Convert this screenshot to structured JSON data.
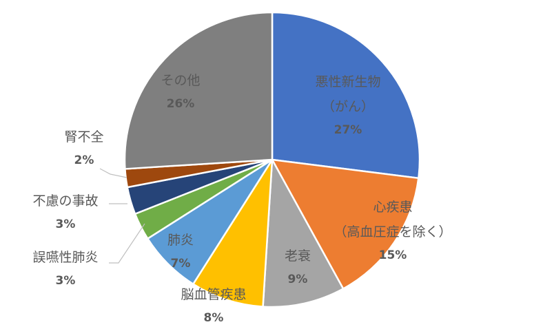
{
  "chart_data": {
    "type": "pie",
    "categories": [
      "悪性新生物\n（がん）",
      "心疾患\n（高血圧症を除く）",
      "老衰",
      "脳血管疾患",
      "肺炎",
      "誤嚥性肺炎",
      "不慮の事故",
      "腎不全",
      "その他"
    ],
    "values": [
      27,
      15,
      9,
      8,
      7,
      3,
      3,
      2,
      26
    ],
    "value_labels": [
      "27%",
      "15%",
      "9%",
      "8%",
      "7%",
      "3%",
      "3%",
      "2%",
      "26%"
    ],
    "colors": [
      "#4472c4",
      "#ed7d31",
      "#a5a5a5",
      "#ffc000",
      "#5b9bd5",
      "#70ad47",
      "#264478",
      "#9e480e",
      "#7f7f7f"
    ]
  }
}
